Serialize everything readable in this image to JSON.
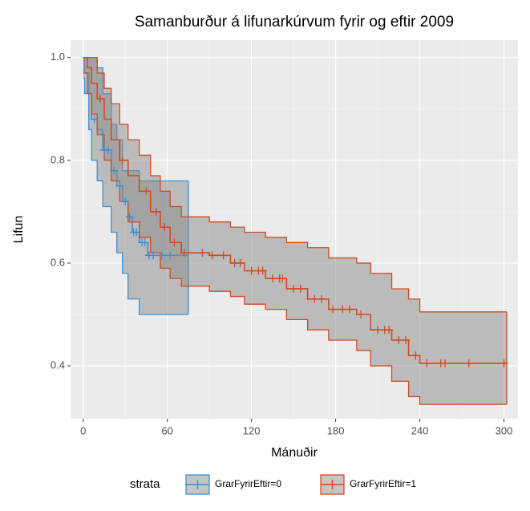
{
  "chart_data": {
    "type": "survival",
    "title": "Samanburður á lifunarkúrvum fyrir og eftir 2009",
    "x_label": "Mánuðir",
    "y_label": "Lifun",
    "legend_title": "strata",
    "legend_position": "bottom",
    "xlim": [
      -9,
      310
    ],
    "ylim": [
      0.297,
      1.034
    ],
    "xticks": [
      0,
      60,
      120,
      180,
      240,
      300
    ],
    "yticks": [
      {
        "value": 0.4,
        "label": "0.4"
      },
      {
        "value": 0.6,
        "label": "0.6"
      },
      {
        "value": 0.8,
        "label": "0.8"
      },
      {
        "value": 1.0,
        "label": "1.0"
      }
    ],
    "xminor": [
      30,
      90,
      150,
      210,
      270
    ],
    "yminor": [
      0.5,
      0.7,
      0.9
    ],
    "grid": true,
    "band_color": "#8c8c8c",
    "series": [
      {
        "name": "GrarFyrirEftir=0",
        "color": "#3d8fd6",
        "x": [
          0,
          1,
          4,
          6,
          10,
          14,
          20,
          24,
          28,
          32,
          35,
          40,
          46,
          75
        ],
        "values": [
          1,
          0.97,
          0.93,
          0.88,
          0.86,
          0.82,
          0.78,
          0.75,
          0.72,
          0.69,
          0.66,
          0.64,
          0.615,
          0.615
        ],
        "upper": [
          1,
          1,
          1,
          1,
          0.98,
          0.93,
          0.87,
          0.84,
          0.78,
          0.78,
          0.78,
          0.76,
          0.76,
          0.76
        ],
        "lower": [
          0.96,
          0.93,
          0.86,
          0.8,
          0.76,
          0.71,
          0.66,
          0.62,
          0.58,
          0.53,
          0.53,
          0.5,
          0.5,
          0.5
        ],
        "censor_x": [
          8,
          15,
          18,
          22,
          26,
          30,
          33,
          36,
          38,
          42,
          44,
          47,
          50,
          56,
          62
        ]
      },
      {
        "name": "GrarFyrirEftir=1",
        "color": "#d14b1f",
        "x": [
          0,
          3,
          6,
          10,
          15,
          20,
          26,
          32,
          40,
          48,
          55,
          62,
          70,
          90,
          105,
          115,
          130,
          145,
          160,
          175,
          195,
          205,
          220,
          232,
          240,
          302
        ],
        "values": [
          1,
          0.98,
          0.95,
          0.92,
          0.88,
          0.84,
          0.8,
          0.77,
          0.74,
          0.7,
          0.67,
          0.64,
          0.62,
          0.615,
          0.6,
          0.585,
          0.57,
          0.55,
          0.53,
          0.51,
          0.5,
          0.47,
          0.45,
          0.42,
          0.405,
          0.405
        ],
        "upper": [
          1,
          1,
          1,
          0.97,
          0.94,
          0.91,
          0.87,
          0.84,
          0.81,
          0.77,
          0.74,
          0.71,
          0.69,
          0.68,
          0.67,
          0.66,
          0.65,
          0.64,
          0.63,
          0.61,
          0.6,
          0.58,
          0.55,
          0.53,
          0.505,
          0.505
        ],
        "lower": [
          0.97,
          0.93,
          0.89,
          0.85,
          0.8,
          0.76,
          0.72,
          0.68,
          0.65,
          0.62,
          0.59,
          0.57,
          0.555,
          0.545,
          0.535,
          0.52,
          0.51,
          0.49,
          0.47,
          0.45,
          0.43,
          0.4,
          0.37,
          0.34,
          0.325,
          0.325
        ],
        "censor_x": [
          12,
          28,
          45,
          52,
          58,
          65,
          72,
          85,
          92,
          100,
          108,
          112,
          120,
          125,
          128,
          135,
          140,
          142,
          150,
          155,
          165,
          170,
          178,
          185,
          190,
          198,
          210,
          215,
          218,
          225,
          230,
          237,
          245,
          255,
          258,
          275,
          300
        ]
      }
    ]
  }
}
